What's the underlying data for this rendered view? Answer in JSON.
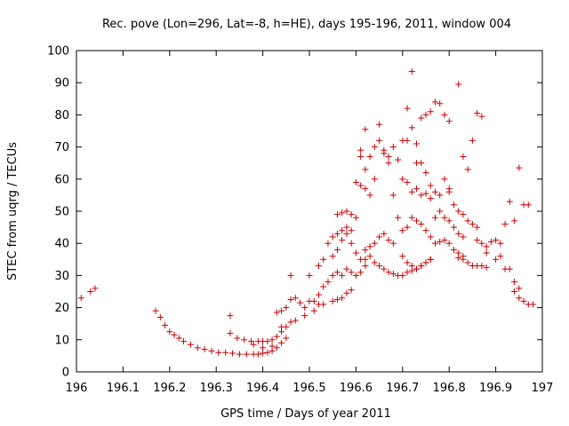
{
  "chart_data": {
    "type": "scatter",
    "title": "Rec. pove (Lon=296, Lat=-8, h=HE), days 195-196, 2011, window 004",
    "xlabel": "GPS time / Days of year 2011",
    "ylabel": "STEC from uqrg / TECUs",
    "xlim": [
      196,
      197
    ],
    "ylim": [
      0,
      100
    ],
    "xticks": [
      "196",
      "196.1",
      "196.2",
      "196.3",
      "196.4",
      "196.5",
      "196.6",
      "196.7",
      "196.8",
      "196.9",
      "197"
    ],
    "yticks": [
      "0",
      "10",
      "20",
      "30",
      "40",
      "50",
      "60",
      "70",
      "80",
      "90",
      "100"
    ],
    "grid": false,
    "marker": "+",
    "color": "#cc0000",
    "points": [
      [
        196.01,
        23
      ],
      [
        196.03,
        25
      ],
      [
        196.04,
        26
      ],
      [
        196.17,
        19
      ],
      [
        196.18,
        17
      ],
      [
        196.19,
        14.5
      ],
      [
        196.2,
        12.5
      ],
      [
        196.21,
        11.5
      ],
      [
        196.22,
        10.5
      ],
      [
        196.23,
        9.5
      ],
      [
        196.245,
        8.5
      ],
      [
        196.26,
        7.5
      ],
      [
        196.275,
        7
      ],
      [
        196.29,
        6.5
      ],
      [
        196.305,
        6
      ],
      [
        196.32,
        6
      ],
      [
        196.335,
        5.8
      ],
      [
        196.35,
        5.5
      ],
      [
        196.365,
        5.5
      ],
      [
        196.38,
        5.5
      ],
      [
        196.39,
        5.5
      ],
      [
        196.4,
        5.8
      ],
      [
        196.41,
        6
      ],
      [
        196.42,
        6.5
      ],
      [
        196.43,
        7.5
      ],
      [
        196.44,
        9
      ],
      [
        196.45,
        10.5
      ],
      [
        196.33,
        17.5
      ],
      [
        196.33,
        12
      ],
      [
        196.345,
        10.5
      ],
      [
        196.36,
        10
      ],
      [
        196.375,
        9.5
      ],
      [
        196.39,
        9.5
      ],
      [
        196.4,
        9.5
      ],
      [
        196.41,
        9.5
      ],
      [
        196.42,
        10
      ],
      [
        196.43,
        11
      ],
      [
        196.44,
        12.5
      ],
      [
        196.45,
        14
      ],
      [
        196.46,
        15.5
      ],
      [
        196.43,
        18.5
      ],
      [
        196.44,
        19
      ],
      [
        196.45,
        20
      ],
      [
        196.46,
        22.5
      ],
      [
        196.47,
        23
      ],
      [
        196.48,
        21.5
      ],
      [
        196.49,
        20
      ],
      [
        196.5,
        22
      ],
      [
        196.51,
        22
      ],
      [
        196.52,
        24
      ],
      [
        196.53,
        26.5
      ],
      [
        196.54,
        28
      ],
      [
        196.5,
        30
      ],
      [
        196.46,
        30
      ],
      [
        196.38,
        8.5
      ],
      [
        196.4,
        7.5
      ],
      [
        196.42,
        8
      ],
      [
        196.44,
        14
      ],
      [
        196.47,
        16
      ],
      [
        196.49,
        17.5
      ],
      [
        196.51,
        19
      ],
      [
        196.52,
        21
      ],
      [
        196.53,
        21
      ],
      [
        196.55,
        22
      ],
      [
        196.56,
        22.5
      ],
      [
        196.57,
        23
      ],
      [
        196.58,
        24.5
      ],
      [
        196.59,
        25.5
      ],
      [
        196.52,
        33
      ],
      [
        196.53,
        35
      ],
      [
        196.54,
        40
      ],
      [
        196.55,
        42
      ],
      [
        196.56,
        43
      ],
      [
        196.57,
        44
      ],
      [
        196.58,
        45
      ],
      [
        196.59,
        44
      ],
      [
        196.55,
        36
      ],
      [
        196.56,
        38
      ],
      [
        196.57,
        41
      ],
      [
        196.58,
        43
      ],
      [
        196.59,
        40
      ],
      [
        196.6,
        37
      ],
      [
        196.61,
        35
      ],
      [
        196.62,
        33
      ],
      [
        196.56,
        49
      ],
      [
        196.57,
        49.5
      ],
      [
        196.58,
        50
      ],
      [
        196.59,
        49
      ],
      [
        196.6,
        48
      ],
      [
        196.6,
        59
      ],
      [
        196.61,
        58
      ],
      [
        196.62,
        57
      ],
      [
        196.61,
        67
      ],
      [
        196.62,
        63
      ],
      [
        196.63,
        55
      ],
      [
        196.61,
        69
      ],
      [
        196.55,
        30
      ],
      [
        196.56,
        31
      ],
      [
        196.57,
        30
      ],
      [
        196.58,
        32
      ],
      [
        196.59,
        31
      ],
      [
        196.6,
        30
      ],
      [
        196.61,
        31
      ],
      [
        196.62,
        35
      ],
      [
        196.63,
        36
      ],
      [
        196.64,
        34
      ],
      [
        196.65,
        33
      ],
      [
        196.66,
        32
      ],
      [
        196.67,
        31
      ],
      [
        196.68,
        30.5
      ],
      [
        196.69,
        30
      ],
      [
        196.62,
        38
      ],
      [
        196.63,
        39
      ],
      [
        196.64,
        40
      ],
      [
        196.65,
        42
      ],
      [
        196.66,
        43
      ],
      [
        196.67,
        41
      ],
      [
        196.68,
        40
      ],
      [
        196.62,
        75.5
      ],
      [
        196.64,
        70
      ],
      [
        196.65,
        77
      ],
      [
        196.66,
        68
      ],
      [
        196.67,
        67
      ],
      [
        196.68,
        70
      ],
      [
        196.69,
        66
      ],
      [
        196.63,
        67
      ],
      [
        196.64,
        60
      ],
      [
        196.65,
        72
      ],
      [
        196.66,
        69
      ],
      [
        196.67,
        65
      ],
      [
        196.68,
        55
      ],
      [
        196.69,
        48
      ],
      [
        196.7,
        72
      ],
      [
        196.71,
        72
      ],
      [
        196.71,
        82
      ],
      [
        196.72,
        93.5
      ],
      [
        196.72,
        76
      ],
      [
        196.73,
        71
      ],
      [
        196.73,
        65
      ],
      [
        196.7,
        60
      ],
      [
        196.71,
        59
      ],
      [
        196.72,
        56
      ],
      [
        196.73,
        57
      ],
      [
        196.74,
        55
      ],
      [
        196.75,
        55.5
      ],
      [
        196.76,
        54
      ],
      [
        196.74,
        79
      ],
      [
        196.75,
        80
      ],
      [
        196.76,
        81
      ],
      [
        196.77,
        84
      ],
      [
        196.78,
        83.5
      ],
      [
        196.79,
        80
      ],
      [
        196.8,
        78
      ],
      [
        196.74,
        65
      ],
      [
        196.75,
        62
      ],
      [
        196.76,
        58
      ],
      [
        196.77,
        56
      ],
      [
        196.78,
        55
      ],
      [
        196.79,
        60
      ],
      [
        196.8,
        57
      ],
      [
        196.7,
        44
      ],
      [
        196.71,
        45
      ],
      [
        196.72,
        48
      ],
      [
        196.73,
        47
      ],
      [
        196.74,
        46
      ],
      [
        196.75,
        44
      ],
      [
        196.76,
        42
      ],
      [
        196.7,
        36
      ],
      [
        196.71,
        34
      ],
      [
        196.72,
        33
      ],
      [
        196.73,
        32
      ],
      [
        196.74,
        33
      ],
      [
        196.75,
        34
      ],
      [
        196.76,
        35
      ],
      [
        196.7,
        30
      ],
      [
        196.71,
        31
      ],
      [
        196.72,
        31.5
      ],
      [
        196.73,
        32
      ],
      [
        196.74,
        33
      ],
      [
        196.75,
        34
      ],
      [
        196.76,
        35
      ],
      [
        196.77,
        40
      ],
      [
        196.78,
        40.5
      ],
      [
        196.79,
        41
      ],
      [
        196.8,
        40
      ],
      [
        196.81,
        38
      ],
      [
        196.82,
        37
      ],
      [
        196.83,
        36
      ],
      [
        196.77,
        48
      ],
      [
        196.78,
        50
      ],
      [
        196.79,
        48
      ],
      [
        196.8,
        47
      ],
      [
        196.81,
        45
      ],
      [
        196.82,
        43
      ],
      [
        196.83,
        42
      ],
      [
        196.8,
        56
      ],
      [
        196.81,
        52
      ],
      [
        196.82,
        50
      ],
      [
        196.83,
        49
      ],
      [
        196.84,
        47
      ],
      [
        196.85,
        46
      ],
      [
        196.86,
        45
      ],
      [
        196.82,
        89.5
      ],
      [
        196.83,
        67
      ],
      [
        196.84,
        63
      ],
      [
        196.85,
        72
      ],
      [
        196.86,
        80.5
      ],
      [
        196.87,
        79.5
      ],
      [
        196.82,
        35.5
      ],
      [
        196.83,
        35
      ],
      [
        196.84,
        34
      ],
      [
        196.85,
        33
      ],
      [
        196.86,
        33
      ],
      [
        196.87,
        33
      ],
      [
        196.88,
        32.5
      ],
      [
        196.86,
        41
      ],
      [
        196.87,
        40
      ],
      [
        196.88,
        39
      ],
      [
        196.89,
        40.5
      ],
      [
        196.9,
        41
      ],
      [
        196.91,
        40
      ],
      [
        196.92,
        46
      ],
      [
        196.88,
        37
      ],
      [
        196.9,
        35
      ],
      [
        196.91,
        36
      ],
      [
        196.92,
        32
      ],
      [
        196.93,
        32
      ],
      [
        196.94,
        28
      ],
      [
        196.95,
        26
      ],
      [
        196.93,
        53
      ],
      [
        196.94,
        47
      ],
      [
        196.95,
        63.5
      ],
      [
        196.96,
        52
      ],
      [
        196.97,
        52
      ],
      [
        196.94,
        25
      ],
      [
        196.95,
        23
      ],
      [
        196.96,
        22
      ],
      [
        196.97,
        21
      ],
      [
        196.98,
        21
      ]
    ]
  }
}
